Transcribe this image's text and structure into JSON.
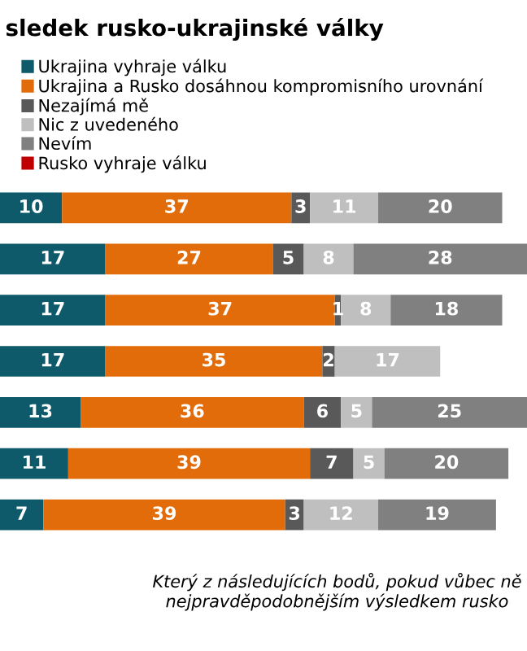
{
  "chart_data": {
    "type": "bar",
    "orientation": "horizontal",
    "stacked": true,
    "title": "sledek rusko-ukrajinské války",
    "categories": [
      null,
      null,
      null,
      null,
      null,
      null,
      null
    ],
    "series": [
      {
        "name": "Ukrajina vyhraje válku",
        "color": "#0e5a6b",
        "values": [
          10,
          17,
          17,
          17,
          13,
          11,
          7
        ]
      },
      {
        "name": "Ukrajina a Rusko dosáhnou kompromisního urovnání",
        "color": "#e36c0a",
        "values": [
          37,
          27,
          37,
          35,
          36,
          39,
          39
        ]
      },
      {
        "name": "Nezajímá mě",
        "color": "#595959",
        "values": [
          3,
          5,
          1,
          2,
          6,
          7,
          3
        ]
      },
      {
        "name": "Nic z uvedeného",
        "color": "#bfbfbf",
        "values": [
          11,
          8,
          8,
          17,
          5,
          5,
          12
        ]
      },
      {
        "name": "Nevím",
        "color": "#808080",
        "values": [
          20,
          28,
          18,
          null,
          25,
          20,
          19
        ]
      },
      {
        "name": "Rusko vyhraje válku",
        "color": "#c00000",
        "values": [
          null,
          null,
          null,
          null,
          null,
          null,
          null
        ]
      }
    ],
    "data_labels": true,
    "tick_labels": false,
    "grid": false,
    "legend": "top left",
    "annotations": [
      "Který z následujících bodů, pokud vůbec ně\nnejpravděpodobnějším výsledkem rusko"
    ]
  }
}
